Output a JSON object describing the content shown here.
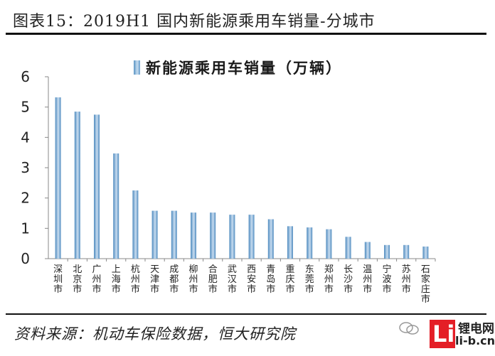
{
  "header": {
    "title": "图表15：2019H1 国内新能源乘用车销量-分城市"
  },
  "footer": {
    "source": "资料来源：机动车保险数据，恒大研究院",
    "watermark_name": "锂电网",
    "watermark_site": "li-b.cn",
    "watermark_logo_letter": "Li"
  },
  "colors": {
    "bar_dark": "#4f8bbf",
    "bar_light": "#c9ddf0",
    "axis": "#888888",
    "logo_red": "#e41e26"
  },
  "chart_data": {
    "type": "bar",
    "legend_position": "top",
    "grid": false,
    "categories": [
      "深圳市",
      "北京市",
      "广州市",
      "上海市",
      "杭州市",
      "天津市",
      "成都市",
      "柳州市",
      "合肥市",
      "武汉市",
      "西安市",
      "青岛市",
      "重庆市",
      "东莞市",
      "郑州市",
      "长沙市",
      "温州市",
      "宁波市",
      "苏州市",
      "石家庄市"
    ],
    "series": [
      {
        "name": "新能源乘用车销量（万辆）",
        "values": [
          5.32,
          4.85,
          4.75,
          3.47,
          2.25,
          1.58,
          1.58,
          1.52,
          1.52,
          1.45,
          1.45,
          1.3,
          1.07,
          1.03,
          0.97,
          0.72,
          0.55,
          0.45,
          0.45,
          0.4
        ]
      }
    ],
    "ylim": [
      0,
      6
    ],
    "yticks": [
      "0",
      "1",
      "2",
      "3",
      "4",
      "5",
      "6"
    ]
  }
}
